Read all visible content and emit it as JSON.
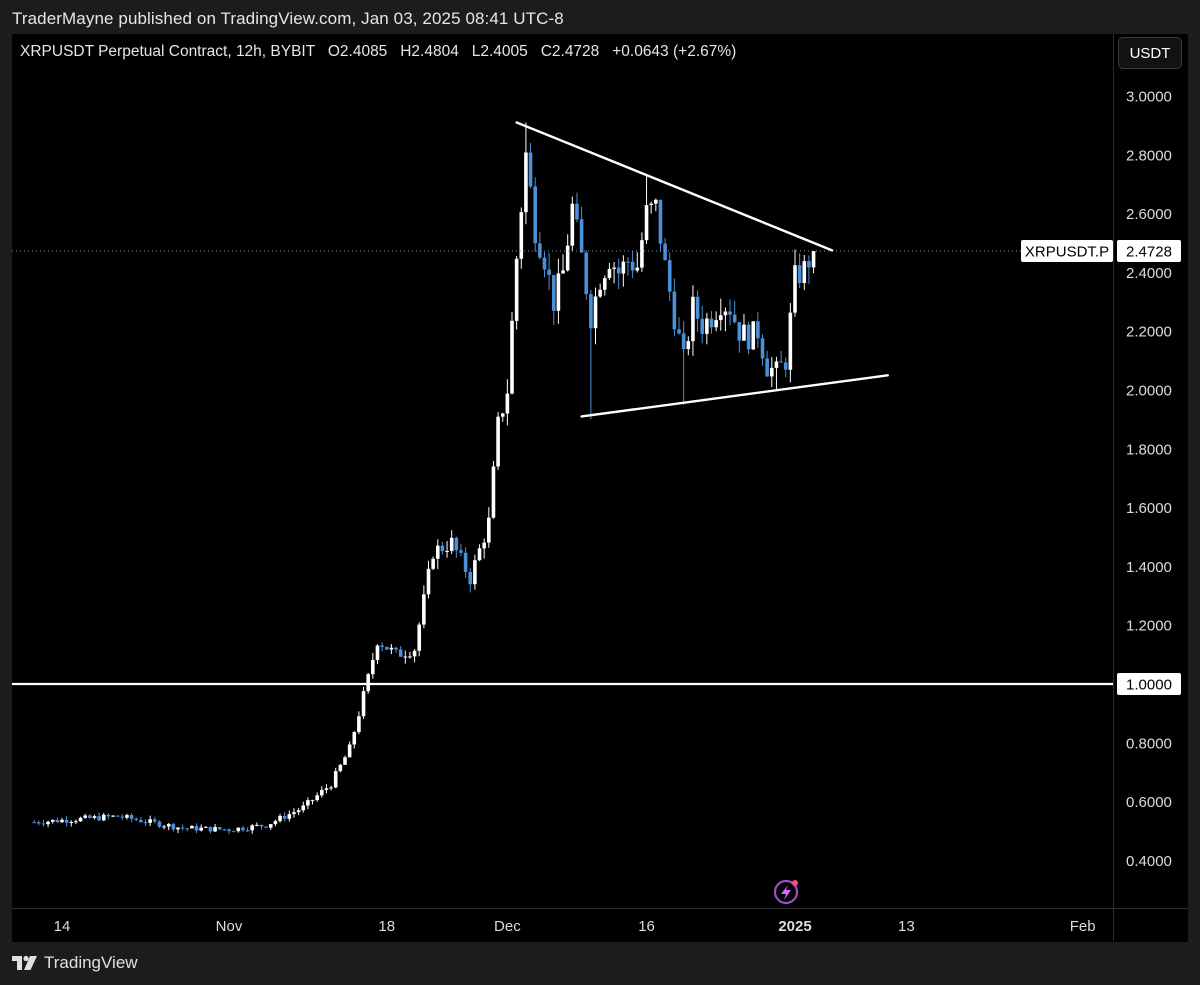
{
  "header": {
    "published_by": "TraderMayne published on TradingView.com, Jan 03, 2025 08:41 UTC-8",
    "legend": "XRPUSDT Perpetual Contract, 12h, BYBIT   O2.4085   H2.4804   L2.4005   C2.4728   +0.0643 (+2.67%)"
  },
  "currency_button": "USDT",
  "footer": {
    "brand": "TradingView"
  },
  "colors": {
    "background": "#000000",
    "bull": "#ffffff",
    "bear": "#4a90d9",
    "lines": "#ffffff"
  },
  "chart_data": {
    "type": "candlestick",
    "symbol": "XRPUSDT Perpetual Contract",
    "interval": "12h",
    "exchange": "BYBIT",
    "ohlc": {
      "open": 2.4085,
      "high": 2.4804,
      "low": 2.4005,
      "close": 2.4728,
      "change": "+0.0643",
      "change_pct": "+2.67%"
    },
    "y_axis": {
      "ticks": [
        "3.0000",
        "2.8000",
        "2.6000",
        "2.4000",
        "2.2000",
        "2.0000",
        "1.8000",
        "1.6000",
        "1.4000",
        "1.2000",
        "1.0000",
        "0.8000",
        "0.6000",
        "0.4000"
      ],
      "range": [
        0.28,
        3.1
      ]
    },
    "x_axis": {
      "ticks": [
        {
          "label": "14",
          "date": "2024-10-14",
          "bold": false
        },
        {
          "label": "Nov",
          "date": "2024-11-01",
          "bold": false
        },
        {
          "label": "18",
          "date": "2024-11-18",
          "bold": false
        },
        {
          "label": "Dec",
          "date": "2024-12-01",
          "bold": false
        },
        {
          "label": "16",
          "date": "2024-12-16",
          "bold": false
        },
        {
          "label": "2025",
          "date": "2025-01-01",
          "bold": true
        },
        {
          "label": "13",
          "date": "2025-01-13",
          "bold": false
        },
        {
          "label": "Feb",
          "date": "2025-02-01",
          "bold": false
        }
      ]
    },
    "last_price_label": {
      "symbol": "XRPUSDT.P",
      "value": "2.4728"
    },
    "horizontal_line": {
      "value": 1.0,
      "label": "1.0000"
    },
    "trendlines": [
      {
        "name": "upper",
        "from": {
          "date": "2024-12-02",
          "value": 2.91
        },
        "to": {
          "date": "2025-01-05",
          "value": 2.475
        }
      },
      {
        "name": "lower",
        "from": {
          "date": "2024-12-09",
          "value": 1.91
        },
        "to": {
          "date": "2025-01-11",
          "value": 2.05
        }
      }
    ],
    "key_prices": {
      "pre_rally_range": [
        0.48,
        0.56
      ],
      "breakout_above_1": "2024-11-16",
      "peak_high": 2.91,
      "peak_date": "2024-12-03",
      "swing_low_1": 1.9,
      "swing_low_2": 1.95,
      "swing_high_2": 2.73,
      "swing_low_3": 2.0,
      "last_close": 2.4728
    }
  }
}
